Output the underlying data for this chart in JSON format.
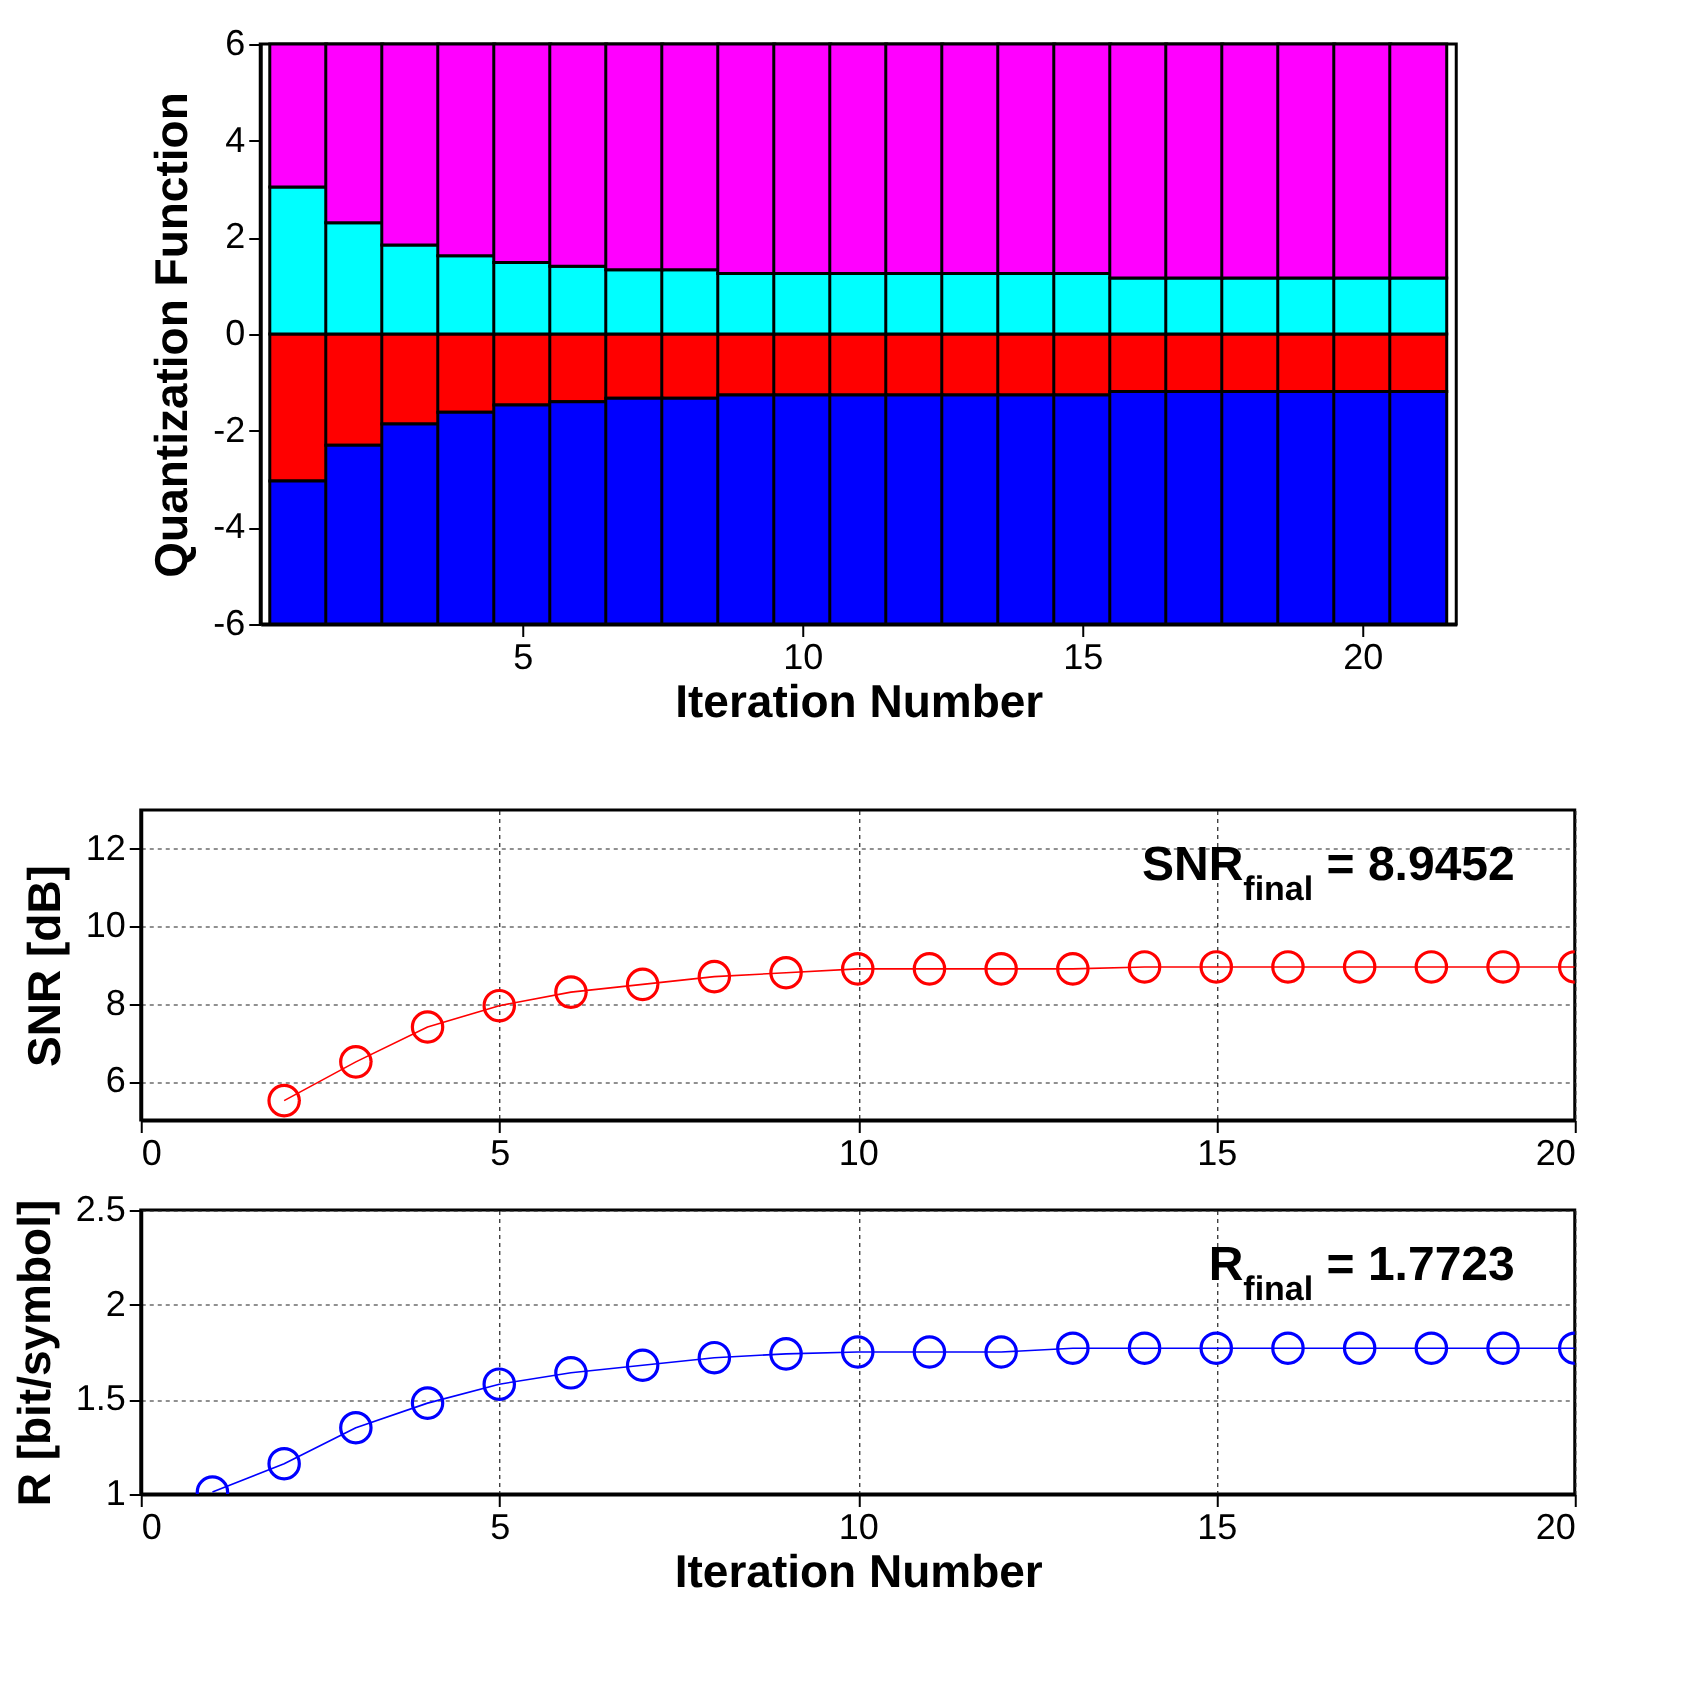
{
  "chart_data": [
    {
      "type": "bar",
      "stacked": true,
      "xlabel": "Iteration Number",
      "ylabel": "Quantization Function",
      "x": [
        1,
        2,
        3,
        4,
        5,
        6,
        7,
        8,
        9,
        10,
        11,
        12,
        13,
        14,
        15,
        16,
        17,
        18,
        19,
        20,
        21
      ],
      "xlim": [
        0.5,
        21.5
      ],
      "xticks": [
        5,
        10,
        15,
        20
      ],
      "ylim": [
        -6,
        6
      ],
      "yticks": [
        -6,
        -4,
        -2,
        0,
        2,
        4,
        6
      ],
      "series": [
        {
          "color": "#ff0000",
          "values": [
            -3.04,
            -2.3,
            -1.86,
            -1.62,
            -1.47,
            -1.4,
            -1.33,
            -1.33,
            -1.26,
            -1.26,
            -1.26,
            -1.26,
            -1.26,
            -1.26,
            -1.26,
            -1.19,
            -1.19,
            -1.19,
            -1.19,
            -1.19,
            -1.19
          ]
        },
        {
          "color": "#0000ff",
          "values": [
            -2.96,
            -3.7,
            -4.14,
            -4.38,
            -4.53,
            -4.6,
            -4.67,
            -4.67,
            -4.74,
            -4.74,
            -4.74,
            -4.74,
            -4.74,
            -4.74,
            -4.74,
            -4.81,
            -4.81,
            -4.81,
            -4.81,
            -4.81,
            -4.81
          ]
        },
        {
          "color": "#00ffff",
          "values": [
            3.04,
            2.3,
            1.84,
            1.62,
            1.48,
            1.4,
            1.33,
            1.33,
            1.25,
            1.25,
            1.25,
            1.25,
            1.25,
            1.25,
            1.25,
            1.16,
            1.16,
            1.16,
            1.16,
            1.16,
            1.16
          ]
        },
        {
          "color": "#ff00ff",
          "values": [
            2.96,
            3.7,
            4.16,
            4.38,
            4.52,
            4.6,
            4.67,
            4.67,
            4.75,
            4.75,
            4.75,
            4.75,
            4.75,
            4.75,
            4.75,
            4.84,
            4.84,
            4.84,
            4.84,
            4.84,
            4.84
          ]
        }
      ]
    },
    {
      "type": "line",
      "ylabel": "SNR [dB]",
      "marker": "circle",
      "grid": true,
      "annotations": [
        "SNR$_{final}$ = 8.9452"
      ],
      "xlim": [
        0,
        20
      ],
      "xticks": [
        0,
        5,
        10,
        15,
        20
      ],
      "ylim": [
        5,
        13
      ],
      "yticks": [
        6,
        8,
        10,
        12
      ],
      "series": [
        {
          "color": "#ff0000",
          "x": [
            2,
            3,
            4,
            5,
            6,
            7,
            8,
            9,
            10,
            11,
            12,
            13,
            14,
            15,
            16,
            17,
            18,
            19,
            20
          ],
          "values": [
            5.5,
            6.5,
            7.4,
            7.95,
            8.3,
            8.5,
            8.7,
            8.8,
            8.9,
            8.9,
            8.9,
            8.9,
            8.95,
            8.95,
            8.95,
            8.95,
            8.95,
            8.95,
            8.95
          ]
        }
      ]
    },
    {
      "type": "line",
      "xlabel": "Iteration Number",
      "ylabel": "R [bit/symbol]",
      "marker": "circle",
      "grid": true,
      "annotations": [
        "R$_{final}$ = 1.7723"
      ],
      "x": [
        1,
        2,
        3,
        4,
        5,
        6,
        7,
        8,
        9,
        10,
        11,
        12,
        13,
        14,
        15,
        16,
        17,
        18,
        19,
        20
      ],
      "xlim": [
        0,
        20
      ],
      "xticks": [
        0,
        5,
        10,
        15,
        20
      ],
      "ylim": [
        1,
        2.5
      ],
      "yticks": [
        1,
        1.5,
        2,
        2.5
      ],
      "series": [
        {
          "color": "#0000ff",
          "values": [
            1.01,
            1.16,
            1.35,
            1.48,
            1.58,
            1.64,
            1.68,
            1.72,
            1.74,
            1.75,
            1.75,
            1.75,
            1.77,
            1.77,
            1.77,
            1.77,
            1.77,
            1.77,
            1.77,
            1.77
          ]
        }
      ]
    }
  ]
}
